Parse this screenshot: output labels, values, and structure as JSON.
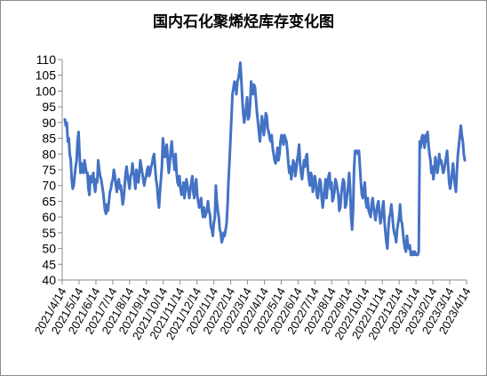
{
  "chart_data": {
    "type": "line",
    "title": "国内石化聚烯烃库存变化图",
    "xlabel": "",
    "ylabel": "",
    "ylim": [
      40,
      110
    ],
    "yticks": [
      40,
      45,
      50,
      55,
      60,
      65,
      70,
      75,
      80,
      85,
      90,
      95,
      100,
      105,
      110
    ],
    "x_tick_labels": [
      "2021/4/14",
      "2021/5/14",
      "2021/6/14",
      "2021/7/14",
      "2021/8/14",
      "2021/9/14",
      "2021/10/14",
      "2021/11/14",
      "2021/12/14",
      "2022/1/14",
      "2022/2/14",
      "2022/3/14",
      "2022/4/14",
      "2022/5/14",
      "2022/6/14",
      "2022/7/14",
      "2022/8/14",
      "2022/9/14",
      "2022/10/14",
      "2022/11/14",
      "2022/12/14",
      "2023/1/14",
      "2023/2/14",
      "2023/3/14",
      "2023/4/14"
    ],
    "grid": false,
    "legend": "none",
    "line_color": "#4472C4",
    "series": [
      {
        "values": [
          91,
          89,
          90,
          84,
          85,
          80,
          78,
          72,
          69,
          70,
          73,
          76,
          78,
          84,
          87,
          80,
          74,
          77,
          75,
          74,
          78,
          76,
          74,
          74,
          69,
          67,
          73,
          71,
          72,
          74,
          70,
          68,
          72,
          71,
          78,
          75,
          73,
          72,
          70,
          68,
          65,
          62,
          61,
          64,
          62,
          65,
          68,
          69,
          71,
          72,
          75,
          73,
          70,
          68,
          71,
          72,
          69,
          70,
          67,
          64,
          66,
          70,
          74,
          76,
          73,
          71,
          69,
          73,
          74,
          77,
          74,
          72,
          69,
          75,
          73,
          71,
          74,
          78,
          76,
          74,
          72,
          70,
          72,
          73,
          75,
          76,
          73,
          74,
          76,
          77,
          79,
          80,
          76,
          72,
          70,
          66,
          63,
          68,
          72,
          76,
          85,
          82,
          79,
          80,
          83,
          78,
          74,
          77,
          81,
          84,
          80,
          78,
          75,
          80,
          74,
          71,
          70,
          73,
          69,
          67,
          68,
          71,
          66,
          69,
          72,
          70,
          68,
          66,
          69,
          71,
          73,
          68,
          66,
          70,
          72,
          67,
          65,
          63,
          64,
          66,
          62,
          60,
          63,
          60,
          61,
          62,
          65,
          62,
          61,
          57,
          56,
          54,
          58,
          60,
          70,
          65,
          62,
          60,
          56,
          55,
          52,
          53,
          55,
          54,
          56,
          58,
          64,
          72,
          78,
          85,
          92,
          99,
          101,
          103,
          102,
          99,
          103,
          104,
          106,
          109,
          104,
          98,
          93,
          90,
          92,
          95,
          98,
          91,
          92,
          96,
          103,
          101,
          99,
          102,
          101,
          97,
          93,
          90,
          87,
          84,
          88,
          92,
          90,
          86,
          89,
          93,
          92,
          88,
          87,
          85,
          84,
          86,
          82,
          80,
          78,
          77,
          79,
          82,
          78,
          80,
          84,
          86,
          85,
          83,
          86,
          85,
          84,
          81,
          77,
          74,
          76,
          72,
          75,
          78,
          77,
          73,
          75,
          78,
          80,
          83,
          77,
          74,
          72,
          75,
          78,
          76,
          79,
          80,
          75,
          72,
          70,
          74,
          73,
          68,
          70,
          73,
          71,
          67,
          66,
          69,
          72,
          71,
          66,
          63,
          66,
          69,
          72,
          66,
          70,
          73,
          74,
          69,
          71,
          65,
          66,
          68,
          72,
          71,
          69,
          67,
          62,
          63,
          67,
          70,
          72,
          71,
          63,
          64,
          67,
          70,
          74,
          69,
          60,
          56,
          62,
          75,
          81,
          81,
          81,
          80,
          81,
          76,
          71,
          67,
          66,
          69,
          71,
          65,
          63,
          66,
          62,
          61,
          60,
          64,
          66,
          63,
          61,
          59,
          62,
          64,
          65,
          61,
          58,
          60,
          63,
          65,
          59,
          55,
          52,
          50,
          56,
          60,
          61,
          64,
          61,
          57,
          55,
          54,
          52,
          56,
          58,
          60,
          64,
          59,
          58,
          55,
          52,
          50,
          49,
          54,
          51,
          50,
          51,
          48,
          48,
          49,
          48,
          49,
          48,
          48,
          48,
          49,
          84,
          82,
          85,
          86,
          84,
          82,
          86,
          84,
          87,
          83,
          80,
          78,
          74,
          76,
          72,
          75,
          79,
          77,
          74,
          76,
          80,
          77,
          78,
          76,
          74,
          75,
          77,
          79,
          81,
          76,
          71,
          69,
          71,
          74,
          77,
          73,
          70,
          68,
          75,
          80,
          83,
          86,
          89,
          86,
          84,
          80,
          78
        ]
      }
    ]
  }
}
